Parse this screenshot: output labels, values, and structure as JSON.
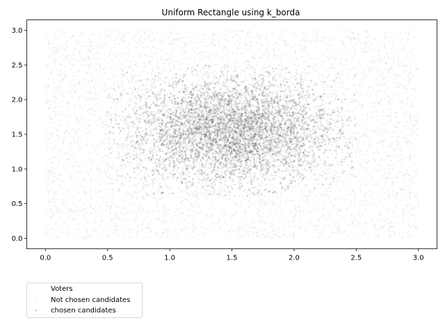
{
  "chart_data": {
    "type": "scatter",
    "title": "Uniform Rectangle using k_borda",
    "xlabel": "",
    "ylabel": "",
    "xlim": [
      -0.15,
      3.15
    ],
    "ylim": [
      -0.15,
      3.15
    ],
    "xticks": [
      0.0,
      0.5,
      1.0,
      1.5,
      2.0,
      2.5,
      3.0
    ],
    "xtick_labels": [
      "0.0",
      "0.5",
      "1.0",
      "1.5",
      "2.0",
      "2.5",
      "3.0"
    ],
    "yticks": [
      0.0,
      0.5,
      1.0,
      1.5,
      2.0,
      2.5,
      3.0
    ],
    "ytick_labels": [
      "0.0",
      "0.5",
      "1.0",
      "1.5",
      "2.0",
      "2.5",
      "3.0"
    ],
    "grid": false,
    "legend_placement": "below-left",
    "series": [
      {
        "name": "Voters",
        "distribution": "uniform",
        "x_range": [
          0.0,
          3.0
        ],
        "y_range": [
          0.0,
          3.0
        ],
        "color": "#ffffff"
      },
      {
        "name": "Not chosen candidates",
        "distribution": "uniform",
        "x_range": [
          0.0,
          3.0
        ],
        "y_range": [
          0.0,
          3.0
        ],
        "color": "#c8c8c8"
      },
      {
        "name": "chosen candidates",
        "distribution": "elliptical cluster",
        "center": [
          1.5,
          1.55
        ],
        "x_range": [
          0.5,
          2.5
        ],
        "y_range": [
          0.6,
          2.5
        ],
        "color": "#444444"
      }
    ]
  }
}
